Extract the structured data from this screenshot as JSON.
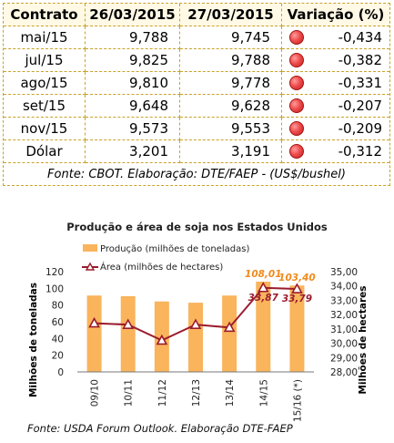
{
  "table": {
    "headers": [
      "Contrato",
      "26/03/2015",
      "27/03/2015",
      "Variação (%)"
    ],
    "rows": [
      {
        "contract": "mai/15",
        "d1": "9,788",
        "d2": "9,745",
        "var": "-0,434"
      },
      {
        "contract": "jul/15",
        "d1": "9,825",
        "d2": "9,788",
        "var": "-0,382"
      },
      {
        "contract": "ago/15",
        "d1": "9,810",
        "d2": "9,778",
        "var": "-0,331"
      },
      {
        "contract": "set/15",
        "d1": "9,648",
        "d2": "9,628",
        "var": "-0,207"
      },
      {
        "contract": "nov/15",
        "d1": "9,573",
        "d2": "9,553",
        "var": "-0,209"
      },
      {
        "contract": "Dólar",
        "d1": "3,201",
        "d2": "3,191",
        "var": "-0,312"
      }
    ],
    "status_icon": "red-circle-icon",
    "status_color": "#e84a4a",
    "border_color": "#c9a227",
    "source": "Fonte: CBOT. Elaboração: DTE/FAEP -  (US$/bushel)"
  },
  "chart_data": {
    "type": "bar",
    "title": "Produção e área de soja nos Estados Unidos",
    "categories": [
      "09/10",
      "10/11",
      "11/12",
      "12/13",
      "13/14",
      "14/15",
      "15/16 (*)"
    ],
    "series": [
      {
        "name": "Produção (milhões de toneladas)",
        "type": "bar",
        "axis": "left",
        "values": [
          91.4,
          90.6,
          84.3,
          82.8,
          91.4,
          108.01,
          103.4
        ],
        "color": "#f9b45c"
      },
      {
        "name": "Área (milhões de hectares)",
        "type": "line",
        "axis": "right",
        "values": [
          31.4,
          31.3,
          30.2,
          31.3,
          31.1,
          33.87,
          33.79
        ],
        "color": "#9b1c2c"
      }
    ],
    "data_labels": {
      "bar": [
        {
          "index": 5,
          "text": "108,01"
        },
        {
          "index": 6,
          "text": "103,40"
        }
      ],
      "line": [
        {
          "index": 5,
          "text": "33,87"
        },
        {
          "index": 6,
          "text": "33,79"
        }
      ]
    },
    "ylabel": "Milhões de toneladas",
    "ylabel_right": "Milhões de hectares",
    "ylim": [
      0,
      120
    ],
    "yticks": [
      "0",
      "20",
      "40",
      "60",
      "80",
      "100",
      "120"
    ],
    "ylim_right": [
      28,
      35
    ],
    "yticks_right": [
      "28,00",
      "29,00",
      "30,00",
      "31,00",
      "32,00",
      "33,00",
      "34,00",
      "35,00"
    ],
    "legend_position": "top-left",
    "grid": false,
    "highlight_label_color": "#f08a1c",
    "source": "Fonte: USDA Forum Outlook. Elaboração DTE-FAEP"
  }
}
